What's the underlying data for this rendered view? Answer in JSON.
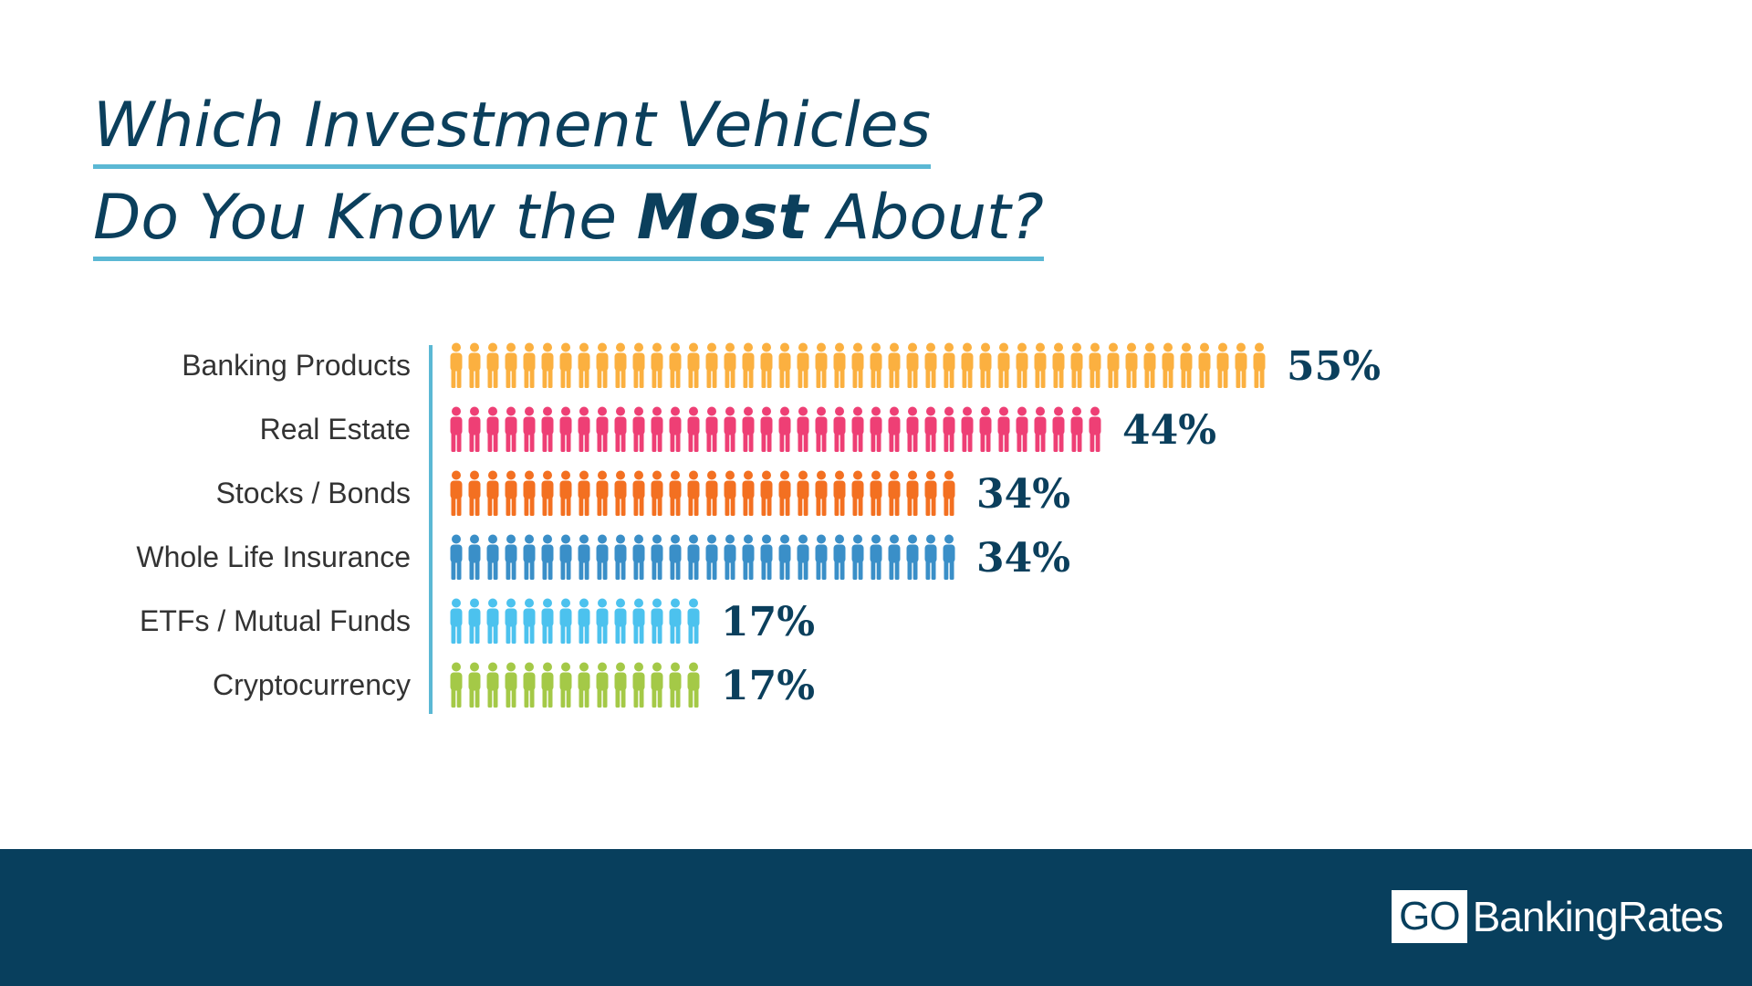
{
  "title": {
    "line1": "Which Investment Vehicles",
    "line2_before": "Do You Know the ",
    "line2_bold": "Most",
    "line2_after": " About?"
  },
  "chart_data": {
    "type": "bar",
    "categories": [
      "Banking Products",
      "Real Estate",
      "Stocks / Bonds",
      "Whole Life Insurance",
      "ETFs / Mutual Funds",
      "Cryptocurrency"
    ],
    "values": [
      55,
      44,
      34,
      34,
      17,
      17
    ],
    "value_labels": [
      "55%",
      "44%",
      "34%",
      "34%",
      "17%",
      "17%"
    ],
    "colors": [
      "#fbb040",
      "#ee3f75",
      "#f37021",
      "#3a8fc8",
      "#4cc2ee",
      "#a4c947"
    ],
    "unit": "%",
    "icon": "person-icon"
  },
  "footer": {
    "logo_box": "GO",
    "logo_text": "BankingRates"
  }
}
